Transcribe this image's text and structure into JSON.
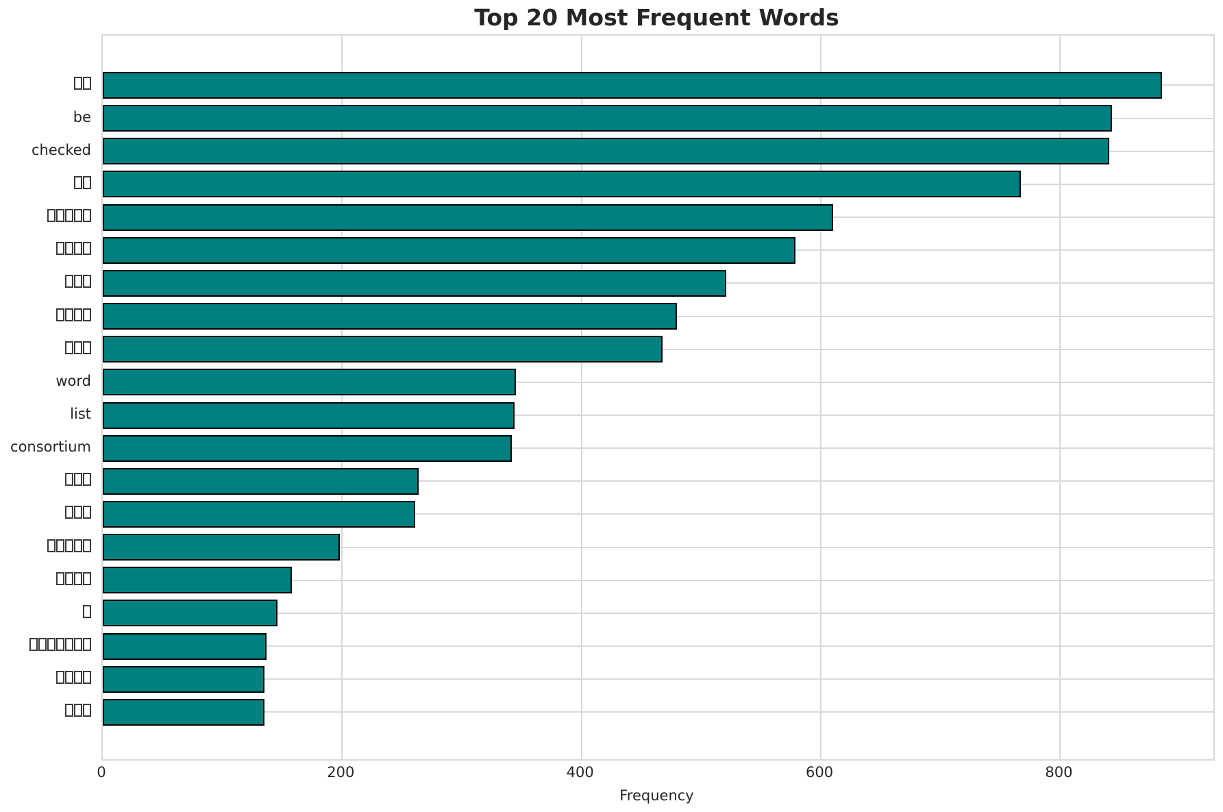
{
  "chart_data": {
    "type": "bar",
    "orientation": "horizontal",
    "title": "Top 20 Most Frequent Words",
    "xlabel": "Frequency",
    "ylabel": "",
    "xticks": [
      0,
      200,
      400,
      600,
      800
    ],
    "xlim": [
      0,
      928
    ],
    "grid": true,
    "legend_position": "none",
    "colors": {
      "bar_fill": "#008080",
      "bar_edge": "#000000",
      "grid": "#d9d9d9",
      "text": "#262626"
    },
    "categories": [
      "▯▯",
      "be",
      "checked",
      "▯▯",
      "▯▯▯▯▯",
      "▯▯▯▯",
      "▯▯▯",
      "▯▯▯▯",
      "▯▯▯",
      "word",
      "list",
      "consortium",
      "▯▯▯",
      "▯▯▯",
      "▯▯▯▯▯",
      "▯▯▯▯",
      "▯",
      "▯▯▯▯▯▯▯",
      "▯▯▯▯",
      "▯▯▯"
    ],
    "values": [
      885,
      843,
      841,
      767,
      610,
      579,
      521,
      480,
      468,
      345,
      344,
      342,
      264,
      261,
      198,
      158,
      146,
      137,
      135,
      135
    ]
  }
}
